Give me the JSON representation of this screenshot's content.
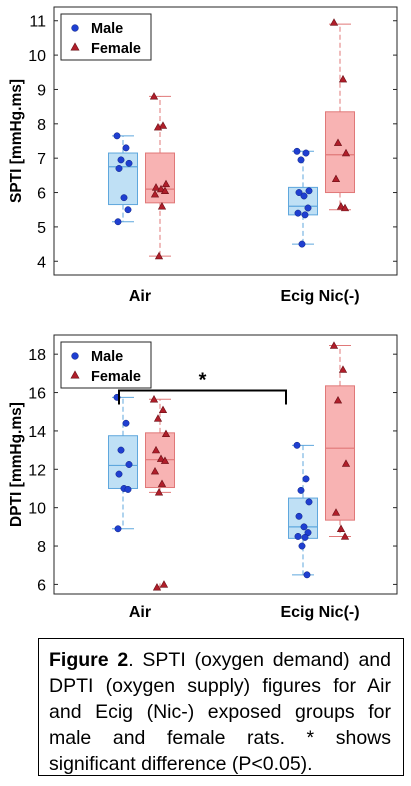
{
  "caption": {
    "label": "Figure 2",
    "text": ". SPTI (oxygen demand) and DPTI (oxygen supply) figures for Air and Ecig (Nic-) exposed groups for male and female rats. * shows significant difference (P<0.05)."
  },
  "colors": {
    "male": "#1f3fd1",
    "female": "#b01e2a",
    "male_box_fill": "#bfe0f5",
    "male_box_stroke": "#5fa7dd",
    "female_box_fill": "#f8b3b3",
    "female_box_stroke": "#e07878"
  },
  "chart_data": [
    {
      "type": "box",
      "ylabel": "SPTI [mmHg.ms]",
      "categories": [
        "Air",
        "Ecig Nic(-)"
      ],
      "ylim": [
        3.6,
        11.4
      ],
      "yticks": [
        4,
        5,
        6,
        7,
        8,
        9,
        10,
        11
      ],
      "legend": {
        "placement": "top-left",
        "entries": [
          "Male",
          "Female"
        ]
      },
      "series": [
        {
          "name": "Male",
          "boxes": [
            {
              "whisker_low": 5.15,
              "q1": 5.65,
              "median": 6.75,
              "q3": 7.15,
              "whisker_high": 7.65,
              "points": [
                7.65,
                7.3,
                6.95,
                6.85,
                6.7,
                5.85,
                5.5,
                5.15
              ]
            },
            {
              "whisker_low": 4.5,
              "q1": 5.35,
              "median": 5.6,
              "q3": 6.15,
              "whisker_high": 7.2,
              "points": [
                7.2,
                7.15,
                6.95,
                6.05,
                6.0,
                5.9,
                5.55,
                5.4,
                5.35,
                4.5
              ]
            }
          ]
        },
        {
          "name": "Female",
          "boxes": [
            {
              "whisker_low": 4.15,
              "q1": 5.7,
              "median": 6.1,
              "q3": 7.15,
              "whisker_high": 8.8,
              "points": [
                8.8,
                7.95,
                7.9,
                6.25,
                6.15,
                6.1,
                6.05,
                5.95,
                5.6,
                4.15
              ]
            },
            {
              "whisker_low": 5.5,
              "q1": 6.0,
              "median": 7.1,
              "q3": 8.35,
              "whisker_high": 10.9,
              "points": [
                10.95,
                9.3,
                7.45,
                7.15,
                6.4,
                5.6,
                5.55
              ]
            }
          ]
        }
      ]
    },
    {
      "type": "box",
      "ylabel": "DPTI [mmHg.ms]",
      "categories": [
        "Air",
        "Ecig Nic(-)"
      ],
      "ylim": [
        5.5,
        19
      ],
      "yticks": [
        6,
        8,
        10,
        12,
        14,
        16,
        18
      ],
      "legend": {
        "placement": "top-left",
        "entries": [
          "Male",
          "Female"
        ]
      },
      "significance": {
        "label": "*",
        "from": "Air",
        "to": "Ecig Nic(-)",
        "y": 16.0
      },
      "series": [
        {
          "name": "Male",
          "boxes": [
            {
              "whisker_low": 8.9,
              "q1": 11.0,
              "median": 12.2,
              "q3": 13.75,
              "whisker_high": 15.75,
              "points": [
                15.75,
                14.4,
                13.0,
                12.25,
                11.75,
                11.0,
                10.95,
                8.9
              ]
            },
            {
              "whisker_low": 6.5,
              "q1": 8.4,
              "median": 9.0,
              "q3": 10.5,
              "whisker_high": 13.25,
              "points": [
                13.25,
                11.5,
                10.9,
                10.3,
                9.55,
                9.0,
                8.7,
                8.5,
                8.45,
                8.0,
                6.5
              ]
            }
          ]
        },
        {
          "name": "Female",
          "boxes": [
            {
              "whisker_low": 10.8,
              "q1": 11.05,
              "median": 12.5,
              "q3": 13.9,
              "whisker_high": 15.65,
              "outliers": [
                5.9
              ],
              "points": [
                15.65,
                15.1,
                14.65,
                13.85,
                13.0,
                12.55,
                12.45,
                11.9,
                11.25,
                10.8,
                6.0,
                5.85
              ]
            },
            {
              "whisker_low": 8.5,
              "q1": 9.35,
              "median": 13.1,
              "q3": 16.35,
              "whisker_high": 18.45,
              "points": [
                18.45,
                17.2,
                15.6,
                12.3,
                9.75,
                8.9,
                8.5
              ]
            }
          ]
        }
      ]
    }
  ]
}
